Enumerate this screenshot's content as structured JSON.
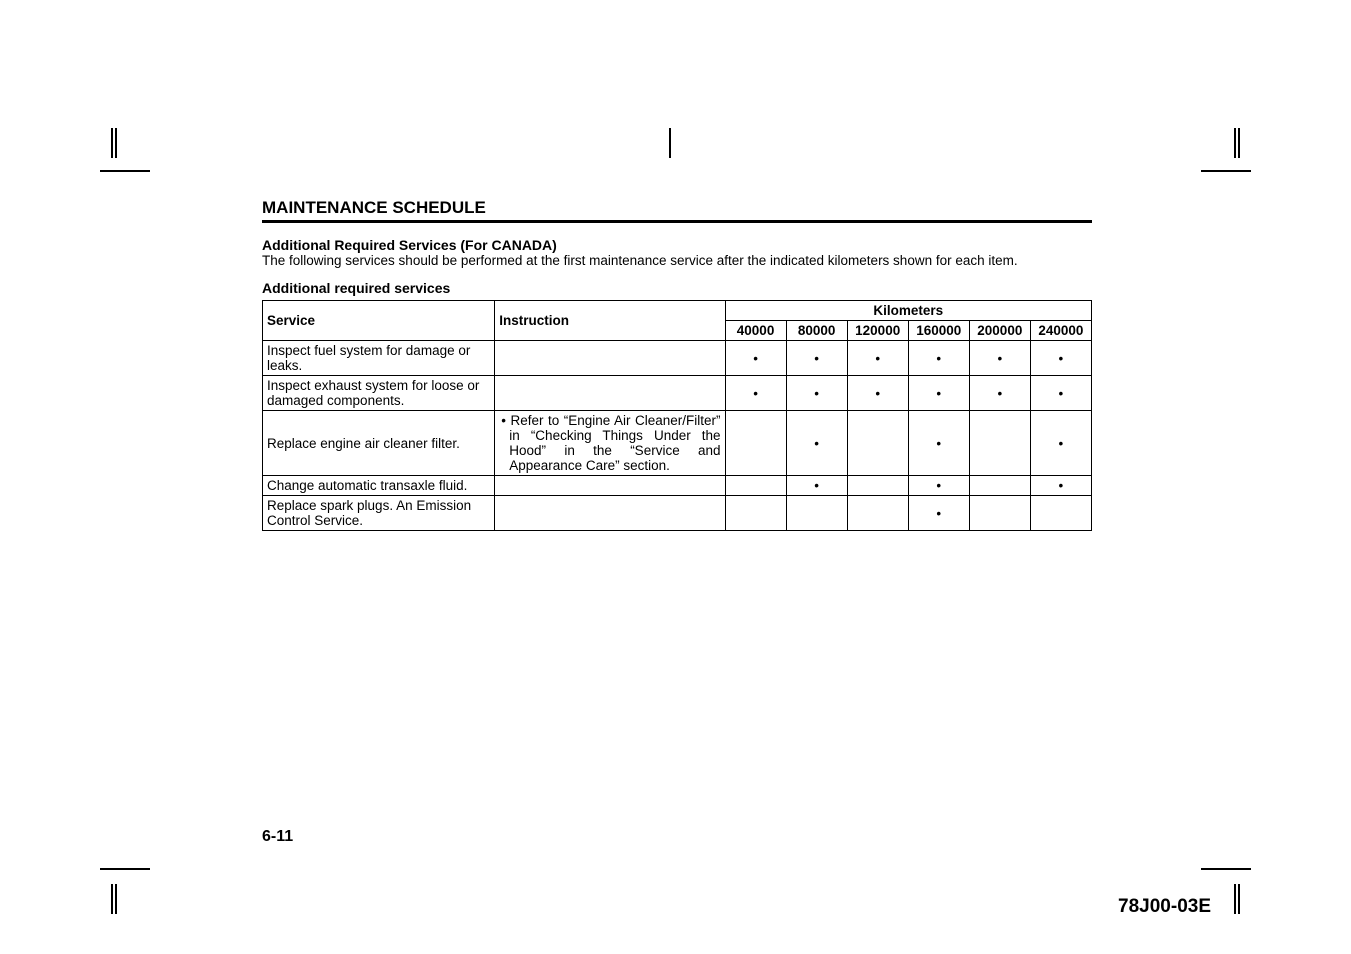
{
  "crop_color": "#000000",
  "heading": "MAINTENANCE SCHEDULE",
  "subheading": "Additional Required Services (For CANADA)",
  "intro": "The following services should be performed at the first maintenance service after the indicated kilometers shown for each item.",
  "table_caption": "Additional required services",
  "col_service": "Service",
  "col_instruction": "Instruction",
  "col_km": "Kilometers",
  "km_headers": [
    "40000",
    "80000",
    "120000",
    "160000",
    "200000",
    "240000"
  ],
  "mark_glyph": "•",
  "rows": [
    {
      "service": "Inspect fuel system for damage or leaks.",
      "instruction": "",
      "marks": [
        true,
        true,
        true,
        true,
        true,
        true
      ]
    },
    {
      "service": "Inspect exhaust system for loose or damaged components.",
      "instruction": "",
      "marks": [
        true,
        true,
        true,
        true,
        true,
        true
      ]
    },
    {
      "service": "Replace engine air cleaner filter.",
      "instruction": "Refer to “Engine Air Cleaner/Filter” in “Checking Things Under the Hood” in the “Service and Appearance Care” section.",
      "marks": [
        false,
        true,
        false,
        true,
        false,
        true
      ]
    },
    {
      "service": "Change automatic transaxle fluid.",
      "instruction": "",
      "marks": [
        false,
        true,
        false,
        true,
        false,
        true
      ]
    },
    {
      "service": "Replace spark plugs. An Emission Control Service.",
      "instruction": "",
      "marks": [
        false,
        false,
        false,
        true,
        false,
        false
      ]
    }
  ],
  "page_number": "6-11",
  "doc_code": "78J00-03E"
}
